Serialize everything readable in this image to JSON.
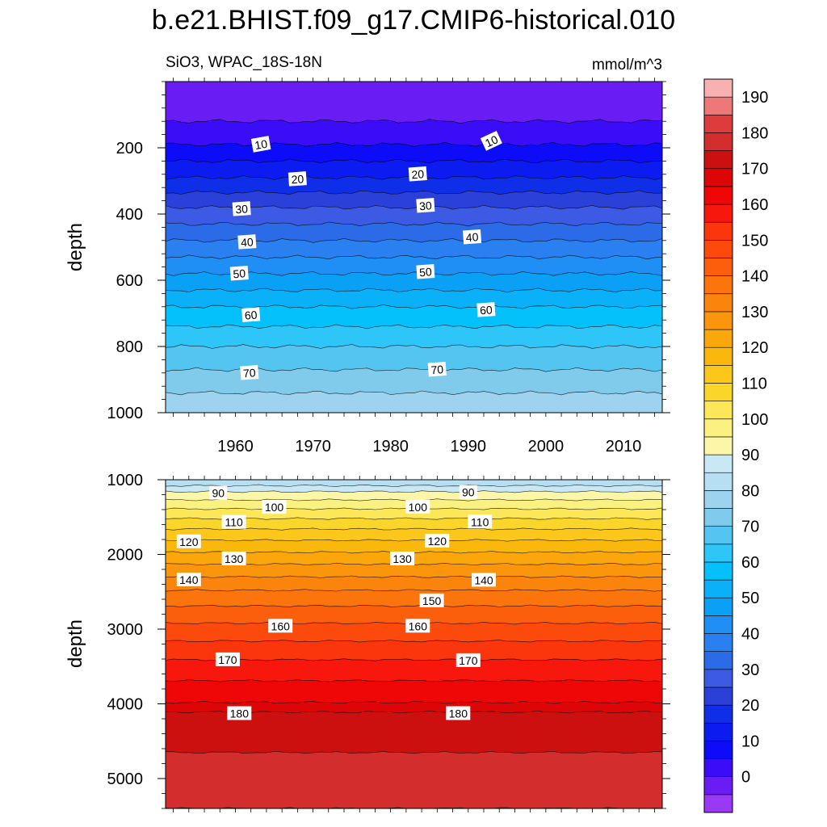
{
  "title": "b.e21.BHIST.f09_g17.CMIP6-historical.010",
  "subtitle_left": "SiO3, WPAC_18S-18N",
  "subtitle_right": "mmol/m^3",
  "ylabel": "depth",
  "chart_data": {
    "type": "heatmap",
    "title": "b.e21.BHIST.f09_g17.CMIP6-historical.010",
    "variable": "SiO3",
    "region": "WPAC_18S-18N",
    "units": "mmol/m^3",
    "x_ticks": [
      "1960",
      "1970",
      "1980",
      "1990",
      "2000",
      "2010"
    ],
    "xlim": [
      1951,
      2015
    ],
    "panels": [
      {
        "name": "upper",
        "ylabel": "depth",
        "ylim": [
          0,
          1000
        ],
        "inverted": true,
        "y_ticks": [
          "200",
          "400",
          "600",
          "800",
          "1000"
        ],
        "contour_levels": [
          0,
          5,
          10,
          15,
          20,
          25,
          30,
          35,
          40,
          45,
          50,
          55,
          60,
          65,
          70,
          75,
          80
        ],
        "contour_depths": [
          0,
          120,
          190,
          240,
          290,
          335,
          380,
          430,
          480,
          530,
          580,
          630,
          680,
          740,
          800,
          870,
          940
        ],
        "contour_labels": [
          {
            "text": "10",
            "year": 1963.3,
            "depth": 190
          },
          {
            "text": "10",
            "year": 1993.0,
            "depth": 180
          },
          {
            "text": "20",
            "year": 1968.0,
            "depth": 295
          },
          {
            "text": "20",
            "year": 1983.5,
            "depth": 280
          },
          {
            "text": "30",
            "year": 1960.8,
            "depth": 385
          },
          {
            "text": "30",
            "year": 1984.5,
            "depth": 375
          },
          {
            "text": "40",
            "year": 1961.5,
            "depth": 485
          },
          {
            "text": "40",
            "year": 1990.5,
            "depth": 470
          },
          {
            "text": "50",
            "year": 1960.5,
            "depth": 580
          },
          {
            "text": "50",
            "year": 1984.5,
            "depth": 575
          },
          {
            "text": "60",
            "year": 1962.0,
            "depth": 705
          },
          {
            "text": "60",
            "year": 1992.3,
            "depth": 690
          },
          {
            "text": "70",
            "year": 1961.8,
            "depth": 880
          },
          {
            "text": "70",
            "year": 1986.0,
            "depth": 870
          }
        ]
      },
      {
        "name": "lower",
        "ylabel": "depth",
        "ylim": [
          1000,
          5400
        ],
        "inverted": true,
        "y_ticks": [
          "1000",
          "2000",
          "3000",
          "4000",
          "5000"
        ],
        "contour_levels": [
          85,
          90,
          95,
          100,
          105,
          110,
          115,
          120,
          125,
          130,
          135,
          140,
          145,
          150,
          155,
          160,
          165,
          170,
          175,
          180,
          185
        ],
        "contour_depths": [
          1000,
          1080,
          1160,
          1270,
          1390,
          1520,
          1660,
          1810,
          1970,
          2130,
          2300,
          2480,
          2690,
          2920,
          3160,
          3410,
          3690,
          3980,
          4110,
          4650,
          5400
        ],
        "contour_labels": [
          {
            "text": "90",
            "year": 1957.8,
            "depth": 1180
          },
          {
            "text": "90",
            "year": 1990.0,
            "depth": 1170
          },
          {
            "text": "100",
            "year": 1965.0,
            "depth": 1370
          },
          {
            "text": "100",
            "year": 1983.5,
            "depth": 1365
          },
          {
            "text": "110",
            "year": 1959.8,
            "depth": 1570
          },
          {
            "text": "110",
            "year": 1991.5,
            "depth": 1565
          },
          {
            "text": "120",
            "year": 1954.0,
            "depth": 1830
          },
          {
            "text": "120",
            "year": 1986.0,
            "depth": 1820
          },
          {
            "text": "130",
            "year": 1959.8,
            "depth": 2060
          },
          {
            "text": "130",
            "year": 1981.5,
            "depth": 2060
          },
          {
            "text": "140",
            "year": 1954.0,
            "depth": 2340
          },
          {
            "text": "140",
            "year": 1992.0,
            "depth": 2345
          },
          {
            "text": "150",
            "year": 1985.3,
            "depth": 2620
          },
          {
            "text": "160",
            "year": 1965.8,
            "depth": 2960
          },
          {
            "text": "160",
            "year": 1983.5,
            "depth": 2960
          },
          {
            "text": "170",
            "year": 1959.0,
            "depth": 3410
          },
          {
            "text": "170",
            "year": 1990.0,
            "depth": 3420
          },
          {
            "text": "180",
            "year": 1960.5,
            "depth": 4130
          },
          {
            "text": "180",
            "year": 1988.7,
            "depth": 4130
          }
        ]
      }
    ],
    "colorbar": {
      "levels": [
        -5,
        0,
        5,
        10,
        15,
        20,
        25,
        30,
        35,
        40,
        45,
        50,
        55,
        60,
        65,
        70,
        75,
        80,
        85,
        90,
        95,
        100,
        105,
        110,
        115,
        120,
        125,
        130,
        135,
        140,
        145,
        150,
        155,
        160,
        165,
        170,
        175,
        180,
        185,
        190,
        195
      ],
      "tick_labels": [
        "0",
        "10",
        "20",
        "30",
        "40",
        "50",
        "60",
        "70",
        "80",
        "90",
        "100",
        "110",
        "120",
        "130",
        "140",
        "150",
        "160",
        "170",
        "180",
        "190"
      ],
      "colors": [
        "#9a39f5",
        "#6a1cf5",
        "#3a0cf8",
        "#0c0cf8",
        "#0c1cf0",
        "#0f2ee8",
        "#2a40d8",
        "#3c5ae4",
        "#2c6be8",
        "#2a80f0",
        "#1f8ef5",
        "#0aa0f5",
        "#0ab0f8",
        "#04c0fb",
        "#2ec6f8",
        "#54c4f0",
        "#80cbec",
        "#9dd3ee",
        "#b6dff2",
        "#c9e8f5",
        "#fcf7a8",
        "#fbf180",
        "#fbe757",
        "#fbd62a",
        "#fbc71a",
        "#fbb80c",
        "#fba70c",
        "#fb960c",
        "#fb850c",
        "#fb740c",
        "#fb5f0c",
        "#fb4a0c",
        "#fb350c",
        "#f8170c",
        "#ef0707",
        "#dd0505",
        "#cc1010",
        "#d42d2d",
        "#dd3c3c",
        "#ee7777",
        "#f8b0b0"
      ]
    }
  }
}
